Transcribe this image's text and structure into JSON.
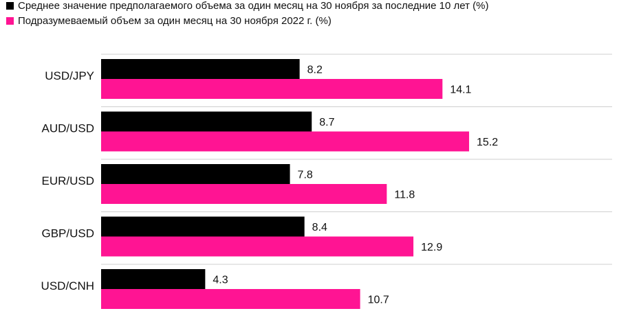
{
  "chart_data": {
    "type": "bar",
    "orientation": "horizontal",
    "categories": [
      "USD/JPY",
      "AUD/USD",
      "EUR/USD",
      "GBP/USD",
      "USD/CNH"
    ],
    "series": [
      {
        "name": "Среднее значение предполагаемого объема за один месяц на 30 ноября за последние 10 лет (%)",
        "color": "#000000",
        "values": [
          8.2,
          8.7,
          7.8,
          8.4,
          4.3
        ]
      },
      {
        "name": "Подразумеваемый объем за один месяц на 30 ноября 2022 г. (%)",
        "color": "#ff1493",
        "values": [
          14.1,
          15.2,
          11.8,
          12.9,
          10.7
        ]
      }
    ],
    "value_labels": [
      [
        "8.2",
        "8.7",
        "7.8",
        "8.4",
        "4.3"
      ],
      [
        "14.1",
        "15.2",
        "11.8",
        "12.9",
        "10.7"
      ]
    ],
    "title": "",
    "xlabel": "",
    "ylabel": "",
    "xlim": [
      0,
      16
    ],
    "grid": false,
    "legend_position": "top-left"
  }
}
